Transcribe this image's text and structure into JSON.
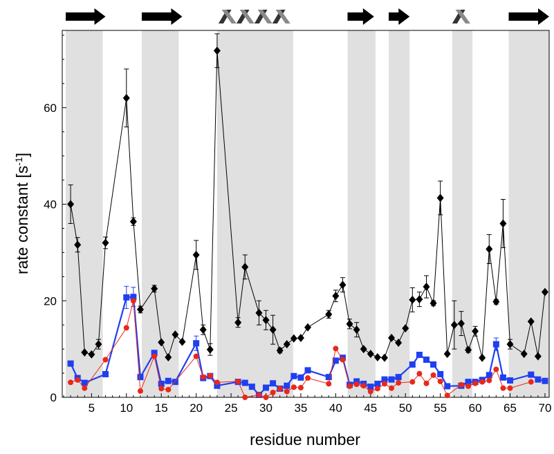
{
  "chart_data": {
    "type": "line",
    "xlabel": "residue number",
    "ylabel_main": "rate constant [s",
    "ylabel_sup": "-1",
    "ylabel_close": "]",
    "xlim": [
      0.8,
      70.6
    ],
    "ylim": [
      0,
      76
    ],
    "xticks": [
      5,
      10,
      15,
      20,
      25,
      30,
      35,
      40,
      45,
      50,
      55,
      60,
      65,
      70
    ],
    "yticks": [
      0,
      20,
      40,
      60
    ],
    "grid": false,
    "shaded_regions": [
      [
        1.3,
        6.6
      ],
      [
        12.2,
        17.5
      ],
      [
        23,
        33.9
      ],
      [
        41.7,
        45.7
      ],
      [
        47.6,
        50.6
      ],
      [
        56.7,
        59.6
      ],
      [
        64.8,
        70.6
      ]
    ],
    "secondary_structure": [
      {
        "type": "strand",
        "start": 1.3,
        "end": 7.0
      },
      {
        "type": "strand",
        "start": 12.2,
        "end": 18.0
      },
      {
        "type": "helix",
        "start": 23.2,
        "end": 33.5
      },
      {
        "type": "strand",
        "start": 41.7,
        "end": 45.5
      },
      {
        "type": "strand",
        "start": 47.6,
        "end": 50.6
      },
      {
        "type": "helix",
        "start": 56.7,
        "end": 59.3
      },
      {
        "type": "strand",
        "start": 64.8,
        "end": 70.6
      }
    ],
    "series": [
      {
        "color": "#000000",
        "marker": "diamond",
        "points": [
          [
            2,
            40,
            4
          ],
          [
            3,
            31.6,
            1.5
          ],
          [
            4,
            9.3,
            0
          ],
          [
            5,
            8.9,
            0
          ],
          [
            6,
            11,
            1
          ],
          [
            7,
            32,
            1.2
          ],
          [
            10,
            62,
            6
          ],
          [
            11,
            36.4,
            0.8
          ],
          [
            12,
            18.2,
            0.7
          ],
          [
            14,
            22.5,
            0.7
          ],
          [
            15,
            11.4,
            0
          ],
          [
            16,
            8.3,
            0
          ],
          [
            17,
            13,
            0
          ],
          [
            18,
            11.5,
            0
          ],
          [
            20,
            29.5,
            3
          ],
          [
            21,
            14,
            1
          ],
          [
            22,
            9.9,
            1.2
          ],
          [
            23,
            71.8,
            3.5
          ],
          [
            26,
            15.5,
            1
          ],
          [
            27,
            27,
            2.5
          ],
          [
            29,
            17.5,
            2.5
          ],
          [
            30,
            16,
            2
          ],
          [
            31,
            14,
            3
          ],
          [
            32,
            9.7,
            0.5
          ],
          [
            33,
            11,
            0
          ],
          [
            34,
            12.2,
            0
          ],
          [
            35,
            12.3,
            0
          ],
          [
            36,
            14.5,
            0
          ],
          [
            39,
            17.2,
            0.8
          ],
          [
            40,
            21,
            1.2
          ],
          [
            41,
            23.3,
            1.5
          ],
          [
            42,
            15.2,
            1
          ],
          [
            43,
            14,
            1.5
          ],
          [
            44,
            10,
            0
          ],
          [
            45,
            9,
            0
          ],
          [
            46,
            8.3,
            0
          ],
          [
            47,
            8.2,
            0
          ],
          [
            48,
            12.3,
            0
          ],
          [
            49,
            11.3,
            0
          ],
          [
            50,
            14.3,
            0
          ],
          [
            51,
            20.2,
            2.5
          ],
          [
            52,
            20.3,
            1.5
          ],
          [
            53,
            22.9,
            2.3
          ],
          [
            54,
            19.5,
            0.5
          ],
          [
            55,
            41.3,
            3.5
          ],
          [
            56,
            9,
            0
          ],
          [
            57,
            15,
            5
          ],
          [
            58,
            15.3,
            2.5
          ],
          [
            59,
            9.8,
            0.5
          ],
          [
            60,
            13.7,
            1
          ],
          [
            61,
            8.2,
            0
          ],
          [
            62,
            30.7,
            3
          ],
          [
            63,
            19.8,
            0.5
          ],
          [
            64,
            36,
            5
          ],
          [
            65,
            11,
            1
          ],
          [
            67,
            9,
            0
          ],
          [
            68,
            15.7,
            0
          ],
          [
            69,
            8.5,
            0
          ],
          [
            70,
            21.8,
            0
          ]
        ]
      },
      {
        "color": "#1f3ff0",
        "marker": "square",
        "points": [
          [
            2,
            7,
            0
          ],
          [
            3,
            4,
            0
          ],
          [
            4,
            3,
            0
          ],
          [
            7,
            4.8,
            0
          ],
          [
            10,
            20.7,
            2.3
          ],
          [
            11,
            20.8,
            2
          ],
          [
            12,
            4.2,
            0
          ],
          [
            14,
            9.2,
            0
          ],
          [
            15,
            2.8,
            0
          ],
          [
            16,
            3.4,
            0
          ],
          [
            17,
            3.2,
            0
          ],
          [
            20,
            11.2,
            1.5
          ],
          [
            21,
            4,
            0
          ],
          [
            22,
            4.4,
            0
          ],
          [
            23,
            2.4,
            0
          ],
          [
            26,
            3.2,
            0
          ],
          [
            27,
            3,
            0
          ],
          [
            28,
            2.2,
            0
          ],
          [
            29,
            0.5,
            0
          ],
          [
            30,
            2,
            0
          ],
          [
            31,
            2.9,
            0
          ],
          [
            32,
            1.8,
            0
          ],
          [
            33,
            2.4,
            0
          ],
          [
            34,
            4.4,
            0
          ],
          [
            35,
            4.1,
            0
          ],
          [
            36,
            5.6,
            0
          ],
          [
            39,
            4.2,
            0
          ],
          [
            40,
            7.6,
            0
          ],
          [
            41,
            8.2,
            0
          ],
          [
            42,
            2.6,
            0
          ],
          [
            43,
            3.3,
            0
          ],
          [
            44,
            2.8,
            0
          ],
          [
            45,
            2.2,
            0
          ],
          [
            46,
            2.8,
            0
          ],
          [
            47,
            3.7,
            0
          ],
          [
            48,
            3.7,
            0
          ],
          [
            49,
            4.2,
            0
          ],
          [
            51,
            6.8,
            0
          ],
          [
            52,
            8.8,
            0
          ],
          [
            53,
            7.8,
            0
          ],
          [
            54,
            6.8,
            0
          ],
          [
            55,
            4.8,
            0
          ],
          [
            56,
            2.3,
            0
          ],
          [
            58,
            2.4,
            0
          ],
          [
            59,
            3.2,
            0
          ],
          [
            60,
            3.2,
            0
          ],
          [
            61,
            3.6,
            0
          ],
          [
            62,
            4.6,
            0
          ],
          [
            63,
            11,
            1.3
          ],
          [
            64,
            4.1,
            0
          ],
          [
            65,
            3.5,
            0
          ],
          [
            68,
            4.7,
            0
          ],
          [
            69,
            3.7,
            0
          ],
          [
            70,
            3.4,
            0
          ]
        ]
      },
      {
        "color": "#e8281c",
        "marker": "circle",
        "points": [
          [
            2,
            3.1
          ],
          [
            3,
            3.6
          ],
          [
            4,
            1.9
          ],
          [
            7,
            7.8
          ],
          [
            10,
            14.4
          ],
          [
            11,
            20
          ],
          [
            12,
            1.3
          ],
          [
            14,
            8.5
          ],
          [
            15,
            1.8
          ],
          [
            16,
            1.6
          ],
          [
            20,
            8.5
          ],
          [
            21,
            4.2
          ],
          [
            22,
            4.5
          ],
          [
            23,
            3.1
          ],
          [
            26,
            3.3
          ],
          [
            27,
            0
          ],
          [
            29,
            0.5
          ],
          [
            30,
            0
          ],
          [
            31,
            1
          ],
          [
            32,
            1.8
          ],
          [
            33,
            1.2
          ],
          [
            34,
            2.1
          ],
          [
            35,
            2
          ],
          [
            36,
            4
          ],
          [
            39,
            2.8
          ],
          [
            40,
            10.1
          ],
          [
            41,
            7.8
          ],
          [
            42,
            2.3
          ],
          [
            43,
            2.7
          ],
          [
            44,
            2.4
          ],
          [
            45,
            1.2
          ],
          [
            46,
            1.8
          ],
          [
            47,
            2.8
          ],
          [
            48,
            1.9
          ],
          [
            49,
            3
          ],
          [
            51,
            3.2
          ],
          [
            52,
            4.9
          ],
          [
            53,
            2.9
          ],
          [
            54,
            4.6
          ],
          [
            55,
            3.3
          ],
          [
            56,
            0.4
          ],
          [
            58,
            2.6
          ],
          [
            59,
            2.3
          ],
          [
            60,
            2.9
          ],
          [
            61,
            3.2
          ],
          [
            62,
            3.5
          ],
          [
            63,
            5.8
          ],
          [
            64,
            1.9
          ],
          [
            65,
            1.9
          ],
          [
            68,
            3.2
          ]
        ]
      }
    ]
  }
}
